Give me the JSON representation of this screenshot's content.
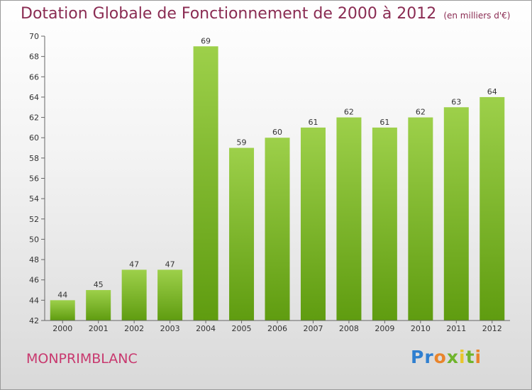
{
  "chart_data": {
    "type": "bar",
    "title": "Dotation Globale de Fonctionnement de 2000 à 2012",
    "unit": "(en milliers d'€)",
    "categories": [
      "2000",
      "2001",
      "2002",
      "2003",
      "2004",
      "2005",
      "2006",
      "2007",
      "2008",
      "2009",
      "2010",
      "2011",
      "2012"
    ],
    "values": [
      44,
      45,
      47,
      47,
      69,
      59,
      60,
      61,
      62,
      61,
      62,
      63,
      64
    ],
    "ylim": [
      42,
      70
    ],
    "yticks": [
      42,
      44,
      46,
      48,
      50,
      52,
      54,
      56,
      58,
      60,
      62,
      64,
      66,
      68,
      70
    ],
    "grid": false,
    "colors": {
      "bar_top": "#9dd04a",
      "bar_bottom": "#5f9c10",
      "title": "#8a2b52"
    }
  },
  "footer": {
    "commune": "MONPRIMBLANC",
    "logo_letters": [
      {
        "ch": "P",
        "color": "#2f7fd0"
      },
      {
        "ch": "r",
        "color": "#2f7fd0"
      },
      {
        "ch": "o",
        "color": "#e9842b"
      },
      {
        "ch": "x",
        "color": "#6fb42c"
      },
      {
        "ch": "i",
        "color": "#e9c62b"
      },
      {
        "ch": "t",
        "color": "#6fb42c"
      },
      {
        "ch": "i",
        "color": "#e9842b"
      }
    ]
  }
}
